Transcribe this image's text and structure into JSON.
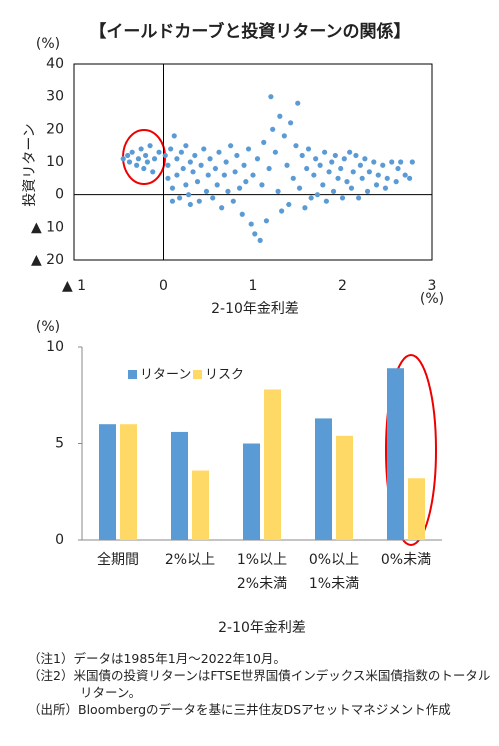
{
  "title": "【イールドカーブと投資リターンの関係】",
  "notes": [
    "（注1）データは1985年1月～2022年10月。",
    "（注2）米国債の投資リターンはFTSE世界国債インデックス米国債指数のトータルリターン。",
    "（出所）Bloombergのデータを基に三井住友DSアセットマネジメント作成"
  ],
  "chart_data": [
    {
      "type": "scatter",
      "ylabel": "投資リターン",
      "xlabel": "2-10年金利差",
      "y_unit": "(%)",
      "x_unit": "(%)",
      "color": "#5b9bd5",
      "x": [
        -0.45,
        -0.4,
        -0.38,
        -0.35,
        -0.3,
        -0.28,
        -0.25,
        -0.22,
        -0.2,
        -0.18,
        -0.15,
        -0.12,
        -0.1,
        -0.05,
        0.02,
        0.05,
        0.05,
        0.08,
        0.1,
        0.1,
        0.12,
        0.15,
        0.15,
        0.18,
        0.2,
        0.22,
        0.25,
        0.25,
        0.28,
        0.3,
        0.3,
        0.33,
        0.35,
        0.38,
        0.4,
        0.42,
        0.45,
        0.48,
        0.5,
        0.52,
        0.55,
        0.58,
        0.6,
        0.62,
        0.65,
        0.68,
        0.7,
        0.72,
        0.75,
        0.78,
        0.8,
        0.82,
        0.85,
        0.88,
        0.9,
        0.92,
        0.95,
        0.98,
        1.0,
        1.02,
        1.05,
        1.08,
        1.1,
        1.12,
        1.15,
        1.18,
        1.2,
        1.22,
        1.25,
        1.28,
        1.3,
        1.32,
        1.35,
        1.38,
        1.4,
        1.42,
        1.45,
        1.48,
        1.5,
        1.52,
        1.55,
        1.58,
        1.6,
        1.62,
        1.65,
        1.68,
        1.7,
        1.72,
        1.75,
        1.78,
        1.8,
        1.82,
        1.85,
        1.88,
        1.9,
        1.92,
        1.95,
        1.98,
        2.0,
        2.02,
        2.05,
        2.08,
        2.1,
        2.12,
        2.15,
        2.18,
        2.2,
        2.22,
        2.25,
        2.28,
        2.3,
        2.35,
        2.38,
        2.4,
        2.45,
        2.48,
        2.5,
        2.55,
        2.6,
        2.62,
        2.65,
        2.7,
        2.75,
        2.78
      ],
      "values": [
        11,
        12,
        10,
        13,
        9,
        11,
        14,
        8,
        12,
        10,
        15,
        7,
        11,
        13,
        12,
        9,
        5,
        14,
        2,
        -2,
        18,
        11,
        6,
        -1,
        13,
        8,
        3,
        15,
        0,
        10,
        -3,
        7,
        12,
        4,
        -2,
        9,
        14,
        1,
        6,
        11,
        -1,
        8,
        3,
        13,
        -4,
        6,
        10,
        1,
        15,
        -2,
        7,
        12,
        2,
        -6,
        9,
        4,
        14,
        -9,
        6,
        -12,
        11,
        -14,
        3,
        16,
        -8,
        8,
        30,
        20,
        13,
        1,
        24,
        -5,
        18,
        9,
        -3,
        22,
        5,
        15,
        28,
        2,
        12,
        -4,
        8,
        14,
        -1,
        6,
        11,
        0,
        9,
        3,
        13,
        -2,
        7,
        10,
        1,
        12,
        5,
        8,
        -1,
        11,
        4,
        13,
        2,
        7,
        12,
        -1,
        9,
        5,
        11,
        1,
        7,
        10,
        3,
        6,
        9,
        2,
        5,
        10,
        4,
        8,
        10,
        6,
        5,
        10
      ],
      "xlim": [
        -1,
        3
      ],
      "xticks": [
        {
          "value": -1,
          "label": "▲ 1"
        },
        0,
        1,
        2,
        3
      ],
      "ylim": [
        -20,
        40
      ],
      "yticks": [
        {
          "value": -20,
          "label": "▲ 20"
        },
        {
          "value": -10,
          "label": "▲ 10"
        },
        0,
        10,
        20,
        30,
        40
      ]
    },
    {
      "type": "bar",
      "xlabel": "2-10年金利差",
      "y_unit": "(%)",
      "legend": "upper left",
      "categories": [
        "全期間",
        "2%以上",
        "1%以上\n2%未満",
        "0%以上\n1%未満",
        "0%未満"
      ],
      "series": [
        {
          "name": "リターン",
          "color": "#5b9bd5",
          "values": [
            6.0,
            5.6,
            5.0,
            6.3,
            8.9
          ]
        },
        {
          "name": "リスク",
          "color": "#ffd966",
          "values": [
            6.0,
            3.6,
            7.8,
            5.4,
            3.2
          ]
        }
      ],
      "ylim": [
        0,
        10
      ],
      "yticks": [
        0,
        5,
        10
      ]
    }
  ]
}
